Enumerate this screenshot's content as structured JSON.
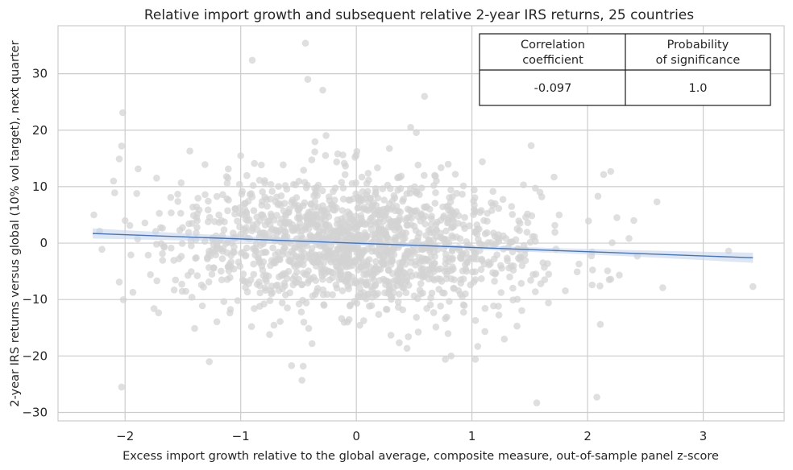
{
  "chart_data": {
    "type": "scatter",
    "title": "Relative import growth and subsequent relative 2-year IRS returns, 25 countries",
    "xlabel": "Excess import growth relative to the global average, composite measure, out-of-sample panel z-score",
    "ylabel": "2-year IRS returns versus global (10% vol target), next quarter",
    "xlim": [
      -2.58,
      3.7
    ],
    "ylim": [
      -31.5,
      38.5
    ],
    "xticks": [
      -2,
      -1,
      0,
      1,
      2,
      3
    ],
    "xtick_labels": [
      "−2",
      "−1",
      "0",
      "1",
      "2",
      "3"
    ],
    "yticks": [
      -30,
      -20,
      -10,
      0,
      10,
      20,
      30
    ],
    "ytick_labels": [
      "−30",
      "−20",
      "−10",
      "0",
      "10",
      "20",
      "30"
    ],
    "grid": true,
    "point_color": "#d3d3d3",
    "regression": {
      "color": "#4c72b0",
      "band_color": "#c6d5ec",
      "x": [
        -2.28,
        3.43
      ],
      "y": [
        1.7,
        -2.6
      ]
    },
    "highlighted_points": [
      {
        "x": -2.27,
        "y": 5.0
      },
      {
        "x": -2.22,
        "y": 2.1
      },
      {
        "x": -2.2,
        "y": -1.1
      },
      {
        "x": -2.1,
        "y": 11.0
      },
      {
        "x": -2.09,
        "y": 8.9
      },
      {
        "x": -2.05,
        "y": 14.9
      },
      {
        "x": -2.03,
        "y": 17.2
      },
      {
        "x": -2.02,
        "y": 23.1
      },
      {
        "x": -2.03,
        "y": -25.5
      },
      {
        "x": -2.05,
        "y": -6.9
      },
      {
        "x": -2.0,
        "y": 4.0
      },
      {
        "x": -1.95,
        "y": -2.1
      },
      {
        "x": -1.75,
        "y": -11.6
      },
      {
        "x": -1.44,
        "y": 16.3
      },
      {
        "x": -0.9,
        "y": 32.4
      },
      {
        "x": -0.44,
        "y": 35.4
      },
      {
        "x": -0.42,
        "y": 29.0
      },
      {
        "x": -0.29,
        "y": 27.1
      },
      {
        "x": 0.59,
        "y": 26.0
      },
      {
        "x": 0.47,
        "y": 20.5
      },
      {
        "x": -0.56,
        "y": -21.7
      },
      {
        "x": -0.46,
        "y": -21.8
      },
      {
        "x": -0.47,
        "y": -24.3
      },
      {
        "x": 0.77,
        "y": -20.6
      },
      {
        "x": 0.82,
        "y": -20.0
      },
      {
        "x": 1.56,
        "y": -28.3
      },
      {
        "x": 2.08,
        "y": -27.3
      },
      {
        "x": 2.11,
        "y": -14.4
      },
      {
        "x": 1.71,
        "y": 11.7
      },
      {
        "x": 2.2,
        "y": 12.7
      },
      {
        "x": 2.09,
        "y": 8.3
      },
      {
        "x": 2.4,
        "y": 4.0
      },
      {
        "x": 2.6,
        "y": 7.3
      },
      {
        "x": 2.65,
        "y": -7.9
      },
      {
        "x": 3.22,
        "y": -1.4
      },
      {
        "x": 3.43,
        "y": -7.7
      },
      {
        "x": 1.91,
        "y": -5.1
      },
      {
        "x": 2.04,
        "y": -7.4
      },
      {
        "x": 2.2,
        "y": -6.4
      },
      {
        "x": 2.43,
        "y": -2.3
      },
      {
        "x": 1.28,
        "y": -17.0
      },
      {
        "x": 1.05,
        "y": -18.3
      },
      {
        "x": 1.03,
        "y": -20.6
      }
    ],
    "cloud": {
      "n": 1550,
      "x_mean": 0.0,
      "x_sd": 0.78,
      "y_intercept": 0.05,
      "y_slope": -0.75,
      "y_sd": 6.0,
      "x_range": [
        -2.05,
        2.4
      ],
      "y_range": [
        -21,
        21
      ]
    },
    "stats_table": {
      "headers": [
        "Correlation\ncoefficient",
        "Probability\nof significance"
      ],
      "values": [
        "-0.097",
        "1.0"
      ]
    }
  }
}
